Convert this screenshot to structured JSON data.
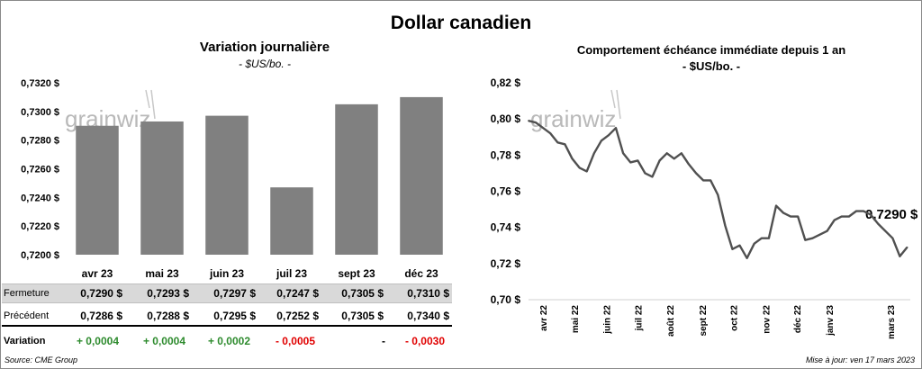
{
  "title": "Dollar canadien",
  "left": {
    "title": "Variation  journalière",
    "subtitle": "- $US/bo. -",
    "watermark": "grainwiz",
    "color": "#808080"
  },
  "right": {
    "title": "Comportement échéance immédiate depuis 1 an",
    "subtitle": "- $US/bo. -",
    "watermark": "grainwiz",
    "annotation": "0,7290 $",
    "color": "#505050"
  },
  "table": {
    "rows": [
      {
        "label": "Fermeture",
        "values": [
          "0,7290  $",
          "0,7293  $",
          "0,7297  $",
          "0,7247  $",
          "0,7305  $",
          "0,7310  $"
        ]
      },
      {
        "label": "Précédent",
        "values": [
          "0,7286  $",
          "0,7288  $",
          "0,7295  $",
          "0,7252  $",
          "0,7305  $",
          "0,7340  $"
        ]
      },
      {
        "label": "Variation",
        "values": [
          "+ 0,0004",
          "+ 0,0004",
          "+ 0,0002",
          "- 0,0005",
          "-",
          "- 0,0030"
        ]
      }
    ]
  },
  "footer": {
    "source": "Source: CME Group",
    "updated": "Mise à jour: ven 17 mars 2023"
  },
  "chart_data": [
    {
      "type": "bar",
      "title": "Variation  journalière",
      "subtitle": "- $US/bo. -",
      "categories": [
        "avr 23",
        "mai 23",
        "juin 23",
        "juil 23",
        "sept 23",
        "déc 23"
      ],
      "values": [
        0.729,
        0.7293,
        0.7297,
        0.7247,
        0.7305,
        0.731
      ],
      "ylim": [
        0.72,
        0.732
      ],
      "yticks": [
        0.72,
        0.722,
        0.724,
        0.726,
        0.728,
        0.73,
        0.732
      ],
      "ytick_labels": [
        "0,7200 $",
        "0,7220 $",
        "0,7240 $",
        "0,7260 $",
        "0,7280 $",
        "0,7300 $",
        "0,7320 $"
      ],
      "grid": false,
      "legend": "none"
    },
    {
      "type": "line",
      "title": "Comportement échéance immédiate depuis 1 an",
      "subtitle": "- $US/bo. -",
      "x": [
        "2022-03-18",
        "2022-03-25",
        "2022-04-01",
        "2022-04-08",
        "2022-04-15",
        "2022-04-22",
        "2022-04-29",
        "2022-05-06",
        "2022-05-13",
        "2022-05-20",
        "2022-05-27",
        "2022-06-03",
        "2022-06-10",
        "2022-06-17",
        "2022-06-24",
        "2022-07-01",
        "2022-07-08",
        "2022-07-15",
        "2022-07-22",
        "2022-07-29",
        "2022-08-05",
        "2022-08-12",
        "2022-08-19",
        "2022-08-26",
        "2022-09-02",
        "2022-09-09",
        "2022-09-16",
        "2022-09-23",
        "2022-09-30",
        "2022-10-07",
        "2022-10-14",
        "2022-10-21",
        "2022-10-28",
        "2022-11-04",
        "2022-11-11",
        "2022-11-18",
        "2022-11-25",
        "2022-12-02",
        "2022-12-09",
        "2022-12-16",
        "2022-12-23",
        "2022-12-30",
        "2023-01-06",
        "2023-01-13",
        "2023-01-20",
        "2023-01-27",
        "2023-02-03",
        "2023-02-10",
        "2023-02-17",
        "2023-02-24",
        "2023-03-03",
        "2023-03-10",
        "2023-03-17"
      ],
      "values": [
        0.799,
        0.798,
        0.795,
        0.792,
        0.787,
        0.786,
        0.778,
        0.773,
        0.771,
        0.781,
        0.788,
        0.791,
        0.795,
        0.781,
        0.776,
        0.777,
        0.77,
        0.768,
        0.777,
        0.781,
        0.778,
        0.781,
        0.775,
        0.77,
        0.766,
        0.766,
        0.758,
        0.741,
        0.728,
        0.73,
        0.723,
        0.731,
        0.734,
        0.734,
        0.752,
        0.748,
        0.746,
        0.746,
        0.733,
        0.734,
        0.736,
        0.738,
        0.744,
        0.746,
        0.746,
        0.749,
        0.749,
        0.747,
        0.742,
        0.738,
        0.734,
        0.724,
        0.729
      ],
      "ylim": [
        0.7,
        0.82
      ],
      "yticks": [
        0.7,
        0.72,
        0.74,
        0.76,
        0.78,
        0.8,
        0.82
      ],
      "ytick_labels": [
        "0,70 $",
        "0,72 $",
        "0,74 $",
        "0,76 $",
        "0,78 $",
        "0,80 $",
        "0,82 $"
      ],
      "xticks": [
        "2022-04-01",
        "2022-05-01",
        "2022-06-01",
        "2022-07-01",
        "2022-08-01",
        "2022-09-01",
        "2022-10-01",
        "2022-11-01",
        "2022-12-01",
        "2023-01-01",
        "2023-03-01"
      ],
      "xtick_labels": [
        "avr 22",
        "mai 22",
        "juin 22",
        "juil 22",
        "août 22",
        "sept 22",
        "oct 22",
        "nov 22",
        "déc 22",
        "janv 23",
        "mars 23"
      ],
      "xlim": [
        "2022-03-18",
        "2023-03-20"
      ],
      "annotation": "0,7290 $",
      "grid": false,
      "legend": "none"
    }
  ]
}
